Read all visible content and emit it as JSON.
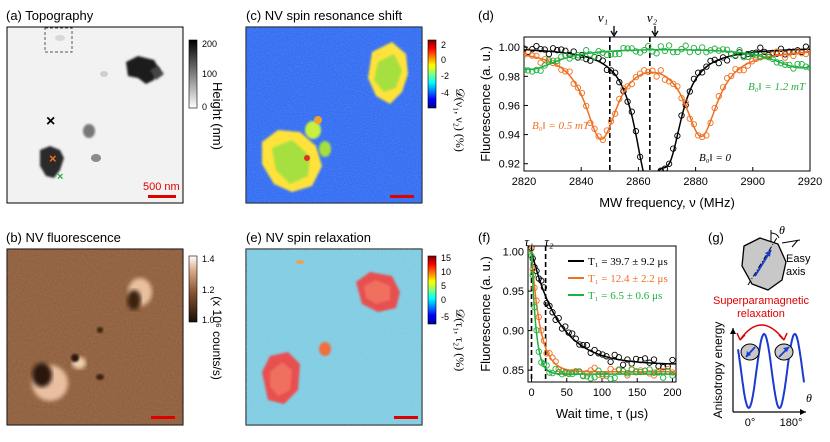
{
  "figure": {
    "panel_a": {
      "title": "(a) Topography",
      "colorbar_ticks": [
        "200",
        "100",
        "0"
      ],
      "colorbar_label": "Height (nm)",
      "scale_bar": "500 nm"
    },
    "panel_b": {
      "title": "(b) NV fluorescence",
      "colorbar_ticks": [
        "1.4",
        "1.2",
        "1.0"
      ],
      "colorbar_label": "(x 10⁶ counts/s)"
    },
    "panel_c": {
      "title": "(c) NV spin resonance shift",
      "colorbar_ticks": [
        "2",
        "0",
        "-2",
        "-4"
      ],
      "colorbar_label": "𝒟(ν₁, ν₂) (%)"
    },
    "panel_e": {
      "title": "(e) NV spin relaxation",
      "colorbar_ticks": [
        "15",
        "10",
        "5",
        "0",
        "-5"
      ],
      "colorbar_label": "𝒟(τ₁, τ₂) (%)"
    },
    "panel_d": {
      "label": "(d)",
      "marker_1": "ν₁",
      "marker_2": "ν₂",
      "legend_green": "B₀‖ = 1.2 mT",
      "legend_orange": "B₀‖ = 0.5 mT",
      "legend_black": "B₀‖ = 0"
    },
    "panel_f": {
      "label": "(f)",
      "marker_1": "τ₁",
      "marker_2": "τ₂",
      "legend": [
        {
          "text": "T₁ = 39.7 ± 9.2 μs",
          "color": "#000000"
        },
        {
          "text": "T₁ = 12.4 ± 2.2 μs",
          "color": "#f07020"
        },
        {
          "text": "T₁ = 6.5 ± 0.6 μs",
          "color": "#20b040"
        }
      ]
    },
    "panel_g": {
      "label": "(g)",
      "theta": "θ",
      "easy_axis": "Easy axis",
      "relaxation_line1": "Superparamagnetic",
      "relaxation_line2": "relaxation",
      "y_label": "Anisotropy energy",
      "x_label": "θ",
      "tick_0": "0°",
      "tick_180": "180°"
    }
  },
  "chart_data": [
    {
      "type": "scatter",
      "title": "(d)",
      "xlabel": "MW frequency, ν (MHz)",
      "ylabel": "Fluorescence  (a. u.)",
      "xlim": [
        2820,
        2920
      ],
      "ylim": [
        0.915,
        1.007
      ],
      "x_ticks": [
        2820,
        2840,
        2860,
        2880,
        2900,
        2920
      ],
      "y_ticks": [
        0.92,
        0.94,
        0.96,
        0.98,
        1.0
      ],
      "dashed_markers": [
        2850,
        2864
      ],
      "series": [
        {
          "name": "B0|| = 0",
          "color": "#000000",
          "model": "dips",
          "baseline": 1.0,
          "dips": [
            {
              "center": 2863,
              "depth": 0.075,
              "width": 5.5
            },
            {
              "center": 2871,
              "depth": 0.055,
              "width": 5.5
            }
          ]
        },
        {
          "name": "B0|| = 0.5 mT",
          "color": "#f07020",
          "model": "dips",
          "baseline": 0.999,
          "dips": [
            {
              "center": 2847,
              "depth": 0.06,
              "width": 7
            },
            {
              "center": 2882,
              "depth": 0.058,
              "width": 7
            }
          ]
        },
        {
          "name": "B0|| = 1.2 mT",
          "color": "#20b040",
          "model": "dips",
          "baseline": 1.0,
          "dips": [
            {
              "center": 2822,
              "depth": 0.015,
              "width": 12
            },
            {
              "center": 2917,
              "depth": 0.014,
              "width": 12
            }
          ]
        }
      ]
    },
    {
      "type": "scatter",
      "title": "(f)",
      "xlabel": "Wait time, τ (μs)",
      "ylabel": "Fluorescence  (a. u.)",
      "xlim": [
        -5,
        205
      ],
      "ylim": [
        0.835,
        1.007
      ],
      "x_ticks": [
        0,
        50,
        100,
        150,
        200
      ],
      "y_ticks": [
        0.85,
        0.9,
        0.95,
        1.0
      ],
      "dashed_markers": [
        0,
        20
      ],
      "series": [
        {
          "name": "T1 = 39.7 ± 9.2 μs",
          "color": "#000000",
          "model": "exp",
          "base": 0.857,
          "amp": 0.143,
          "T1": 39.7
        },
        {
          "name": "T1 = 12.4 ± 2.2 μs",
          "color": "#f07020",
          "model": "exp",
          "base": 0.848,
          "amp": 0.152,
          "T1": 12.4
        },
        {
          "name": "T1 = 6.5 ± 0.6 μs",
          "color": "#20b040",
          "model": "exp",
          "base": 0.845,
          "amp": 0.155,
          "T1": 6.5
        }
      ]
    }
  ]
}
